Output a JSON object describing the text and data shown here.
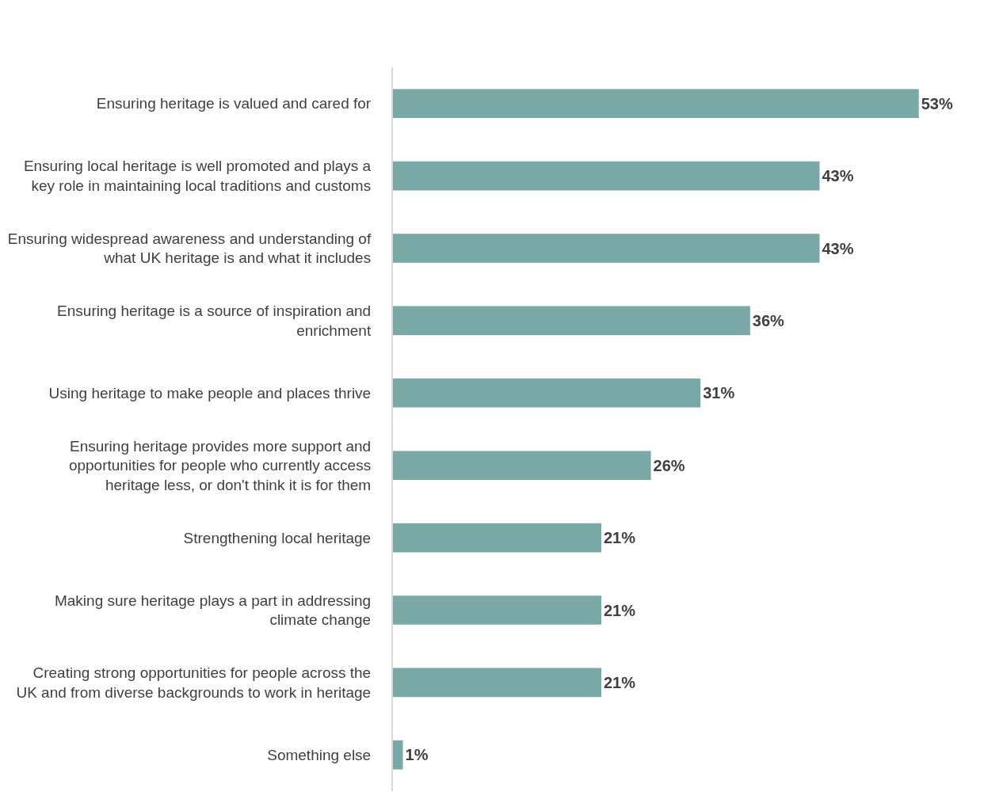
{
  "chart_data": {
    "type": "bar",
    "orientation": "horizontal",
    "categories": [
      "Ensuring heritage is valued and cared for",
      "Ensuring local heritage is well promoted and plays a key role in maintaining local traditions and customs",
      "Ensuring widespread awareness and understanding of what UK heritage is and what it includes",
      "Ensuring heritage is a source of inspiration and enrichment",
      "Using heritage to make people and places thrive",
      "Ensuring heritage provides more support and opportunities for people who currently access heritage less, or don't think it is for them",
      "Strengthening local heritage",
      "Making sure heritage plays a part in addressing climate change",
      "Creating strong opportunities for people across the UK and from diverse backgrounds to work in heritage",
      "Something else"
    ],
    "values": [
      53,
      43,
      43,
      36,
      31,
      26,
      21,
      21,
      21,
      1
    ],
    "value_labels": [
      "53%",
      "43%",
      "43%",
      "36%",
      "31%",
      "26%",
      "21%",
      "21%",
      "21%",
      "1%"
    ],
    "color": "#79a8a6"
  }
}
